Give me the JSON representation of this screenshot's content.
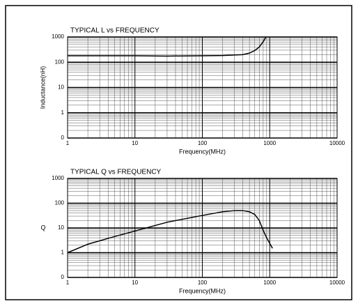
{
  "chart_data": [
    {
      "type": "line",
      "title": "TYPICAL L vs FREQUENCY",
      "x_label": "Frequency(MHz)",
      "y_label": "Inductance(nH)",
      "xscale": "log",
      "yscale": "log",
      "grid": true,
      "minor_grid": true,
      "xlim": [
        1,
        10000
      ],
      "xticks": [
        1,
        10,
        100,
        1000,
        10000
      ],
      "ylim": [
        0.1,
        1000
      ],
      "yticks": [
        {
          "value": 0.1,
          "label": "0"
        },
        1,
        10,
        100,
        1000
      ],
      "series": [
        {
          "color": "#000000",
          "x": [
            1,
            10,
            30,
            100,
            200,
            400,
            500,
            600,
            700,
            800,
            880
          ],
          "values": [
            180,
            180,
            175,
            180,
            185,
            200,
            230,
            290,
            400,
            650,
            1000
          ]
        }
      ]
    },
    {
      "type": "line",
      "title": "TYPICAL Q vs FREQUENCY",
      "x_label": "Frequency(MHz)",
      "y_label": "Q",
      "xscale": "log",
      "yscale": "log",
      "grid": true,
      "minor_grid": true,
      "xlim": [
        1,
        10000
      ],
      "xticks": [
        1,
        10,
        100,
        1000,
        10000
      ],
      "ylim": [
        0.1,
        1000
      ],
      "yticks": [
        {
          "value": 0.1,
          "label": "0"
        },
        1,
        10,
        100,
        1000
      ],
      "series": [
        {
          "color": "#000000",
          "x": [
            1,
            2,
            5,
            10,
            30,
            100,
            200,
            300,
            400,
            500,
            600,
            700,
            800,
            900,
            1100
          ],
          "values": [
            1,
            2.2,
            4.5,
            7.5,
            17,
            32,
            45,
            50,
            50,
            45,
            35,
            20,
            8,
            4,
            1.5
          ]
        }
      ]
    }
  ]
}
